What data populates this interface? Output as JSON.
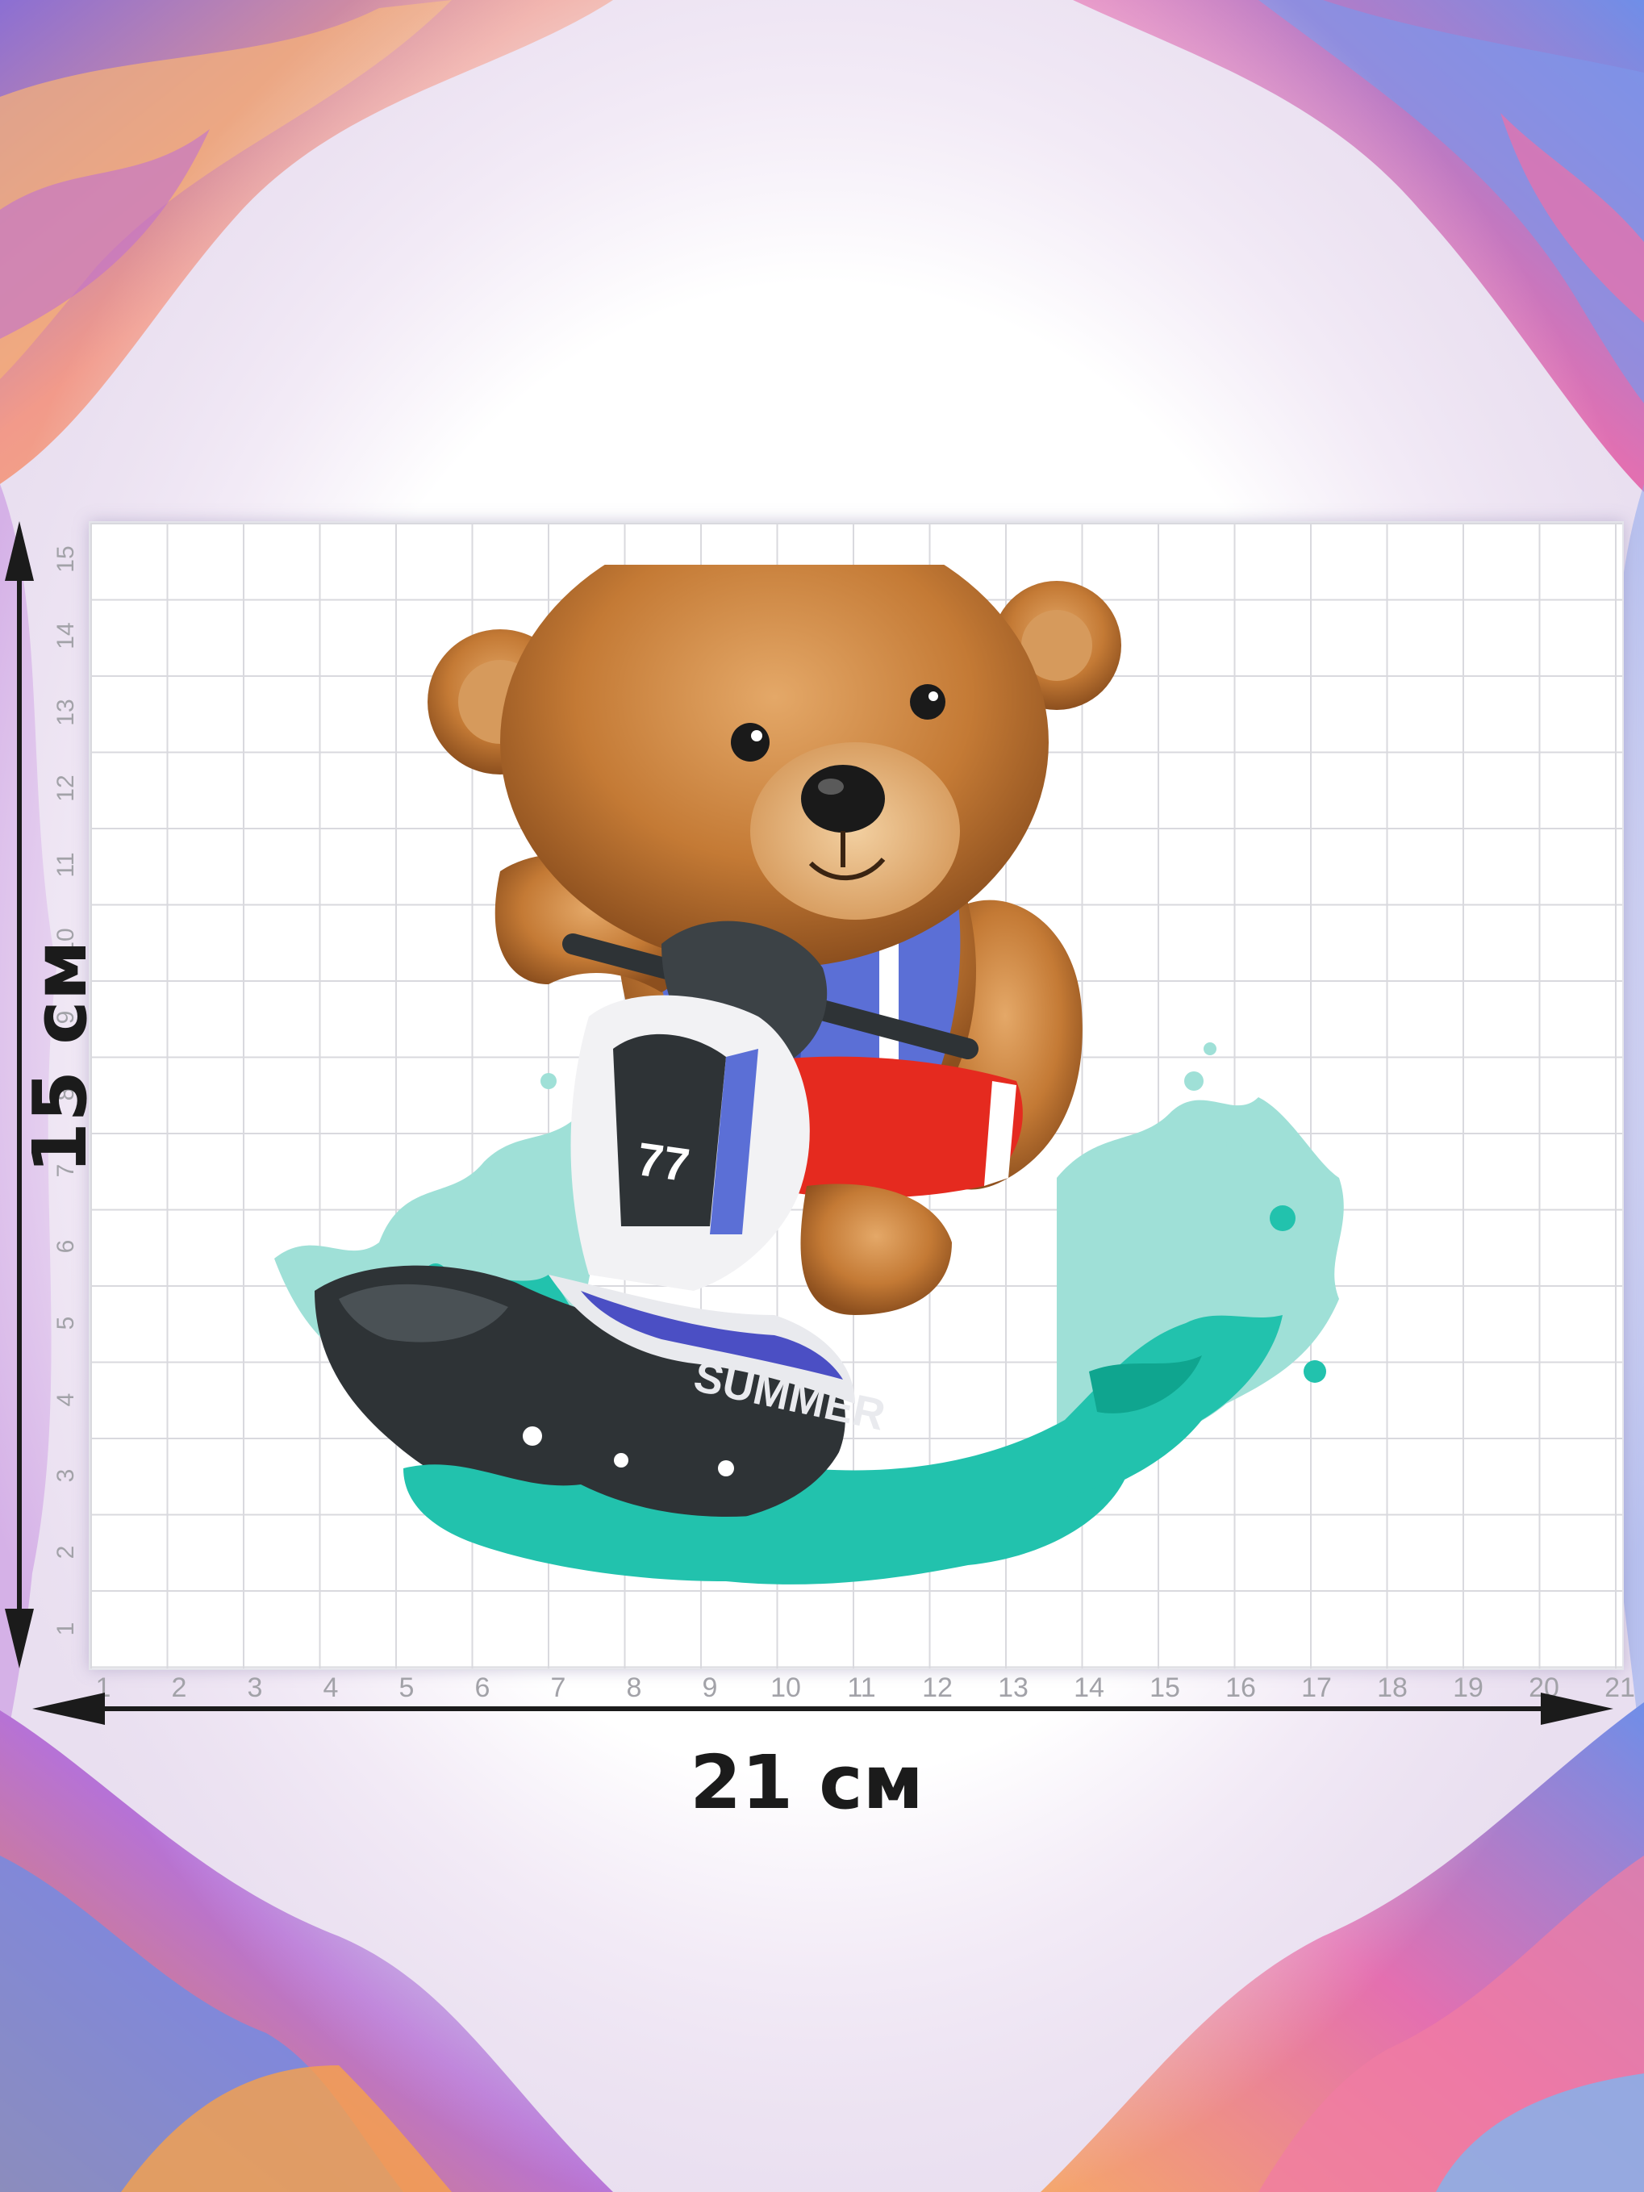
{
  "dimensions": {
    "height_label": "15 см",
    "width_label": "21 см",
    "ruler_y_ticks": [
      "1",
      "2",
      "3",
      "4",
      "5",
      "6",
      "7",
      "8",
      "9",
      "10",
      "11",
      "12",
      "13",
      "14",
      "15"
    ],
    "ruler_x_ticks": [
      "1",
      "2",
      "3",
      "4",
      "5",
      "6",
      "7",
      "8",
      "9",
      "10",
      "11",
      "12",
      "13",
      "14",
      "15",
      "16",
      "17",
      "18",
      "19",
      "20",
      "21"
    ]
  },
  "artwork": {
    "subject": "teddy bear riding a jet ski through a water splash",
    "jetski_text": "SUMMER",
    "jetski_number": "77"
  },
  "colors": {
    "fur": "#c47a35",
    "vest": "#5b6fd6",
    "shorts": "#e52a1f",
    "water": "#22c2ad",
    "hull": "#2e3336",
    "grid": "#d9d9de",
    "label": "#1b1b1b"
  }
}
